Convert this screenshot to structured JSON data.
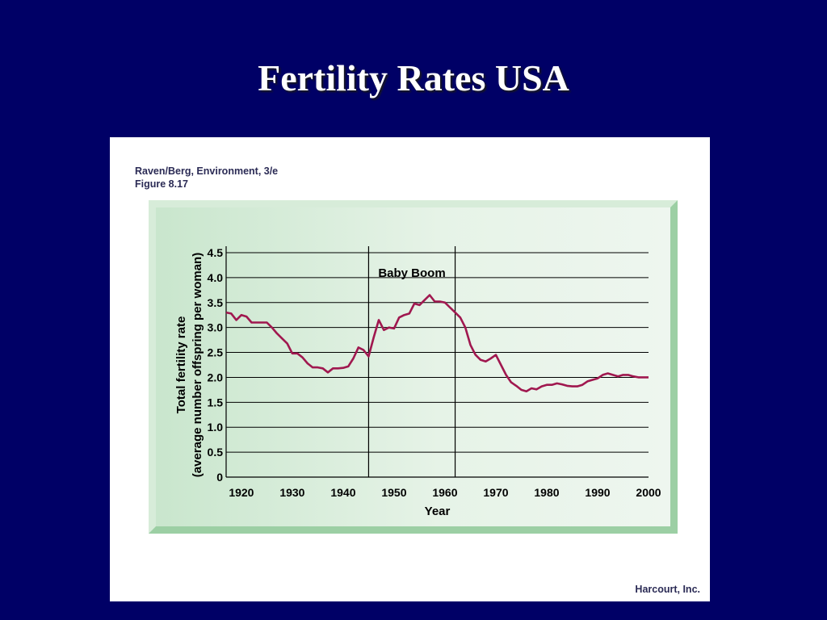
{
  "slide": {
    "title": "Fertility Rates USA"
  },
  "figure": {
    "source_line1": "Raven/Berg, Environment, 3/e",
    "source_line2": "Figure 8.17",
    "publisher": "Harcourt, Inc.",
    "annotation": "Baby Boom"
  },
  "colors": {
    "background": "#000066",
    "line": "#a0184f",
    "panel": "#d8eedb"
  },
  "chart_data": {
    "type": "line",
    "title": "",
    "xlabel": "Year",
    "ylabel_line1": "Total fertility rate",
    "ylabel_line2": "(average number offspring per woman)",
    "xlim": [
      1917,
      2000
    ],
    "ylim": [
      0,
      4.5
    ],
    "x_ticks": [
      1920,
      1930,
      1940,
      1950,
      1960,
      1970,
      1980,
      1990,
      2000
    ],
    "y_ticks": [
      0,
      0.5,
      1.0,
      1.5,
      2.0,
      2.5,
      3.0,
      3.5,
      4.0,
      4.5
    ],
    "y_tick_labels": [
      "0",
      "0.5",
      "1.0",
      "1.5",
      "2.0",
      "2.5",
      "3.0",
      "3.5",
      "4.0",
      "4.5"
    ],
    "grid": "horizontal",
    "shaded_period": {
      "label": "Baby Boom",
      "start": 1945,
      "end": 1962
    },
    "series": [
      {
        "x": [
          1917,
          1918,
          1919,
          1920,
          1921,
          1922,
          1923,
          1924,
          1925,
          1926,
          1927,
          1928,
          1929,
          1930,
          1931,
          1932,
          1933,
          1934,
          1935,
          1936,
          1937,
          1938,
          1939,
          1940,
          1941,
          1942,
          1943,
          1944,
          1945,
          1946,
          1947,
          1948,
          1949,
          1950,
          1951,
          1952,
          1953,
          1954,
          1955,
          1956,
          1957,
          1958,
          1959,
          1960,
          1961,
          1962,
          1963,
          1964,
          1965,
          1966,
          1967,
          1968,
          1969,
          1970,
          1971,
          1972,
          1973,
          1974,
          1975,
          1976,
          1977,
          1978,
          1979,
          1980,
          1981,
          1982,
          1983,
          1984,
          1985,
          1986,
          1987,
          1988,
          1989,
          1990,
          1991,
          1992,
          1993,
          1994,
          1995,
          1996,
          1997,
          1998,
          1999,
          2000
        ],
        "y": [
          3.3,
          3.28,
          3.15,
          3.25,
          3.22,
          3.1,
          3.1,
          3.1,
          3.1,
          3.0,
          2.88,
          2.78,
          2.68,
          2.48,
          2.48,
          2.4,
          2.28,
          2.2,
          2.2,
          2.18,
          2.1,
          2.18,
          2.18,
          2.19,
          2.22,
          2.38,
          2.6,
          2.55,
          2.42,
          2.8,
          3.15,
          2.95,
          3.0,
          2.98,
          3.2,
          3.25,
          3.28,
          3.48,
          3.45,
          3.55,
          3.65,
          3.52,
          3.52,
          3.5,
          3.4,
          3.3,
          3.2,
          3.0,
          2.65,
          2.45,
          2.35,
          2.32,
          2.38,
          2.45,
          2.25,
          2.05,
          1.9,
          1.83,
          1.75,
          1.72,
          1.78,
          1.76,
          1.82,
          1.85,
          1.85,
          1.88,
          1.86,
          1.83,
          1.82,
          1.82,
          1.85,
          1.92,
          1.95,
          1.98,
          2.05,
          2.08,
          2.05,
          2.02,
          2.05,
          2.05,
          2.02,
          2.0,
          2.0,
          2.0
        ]
      }
    ]
  }
}
